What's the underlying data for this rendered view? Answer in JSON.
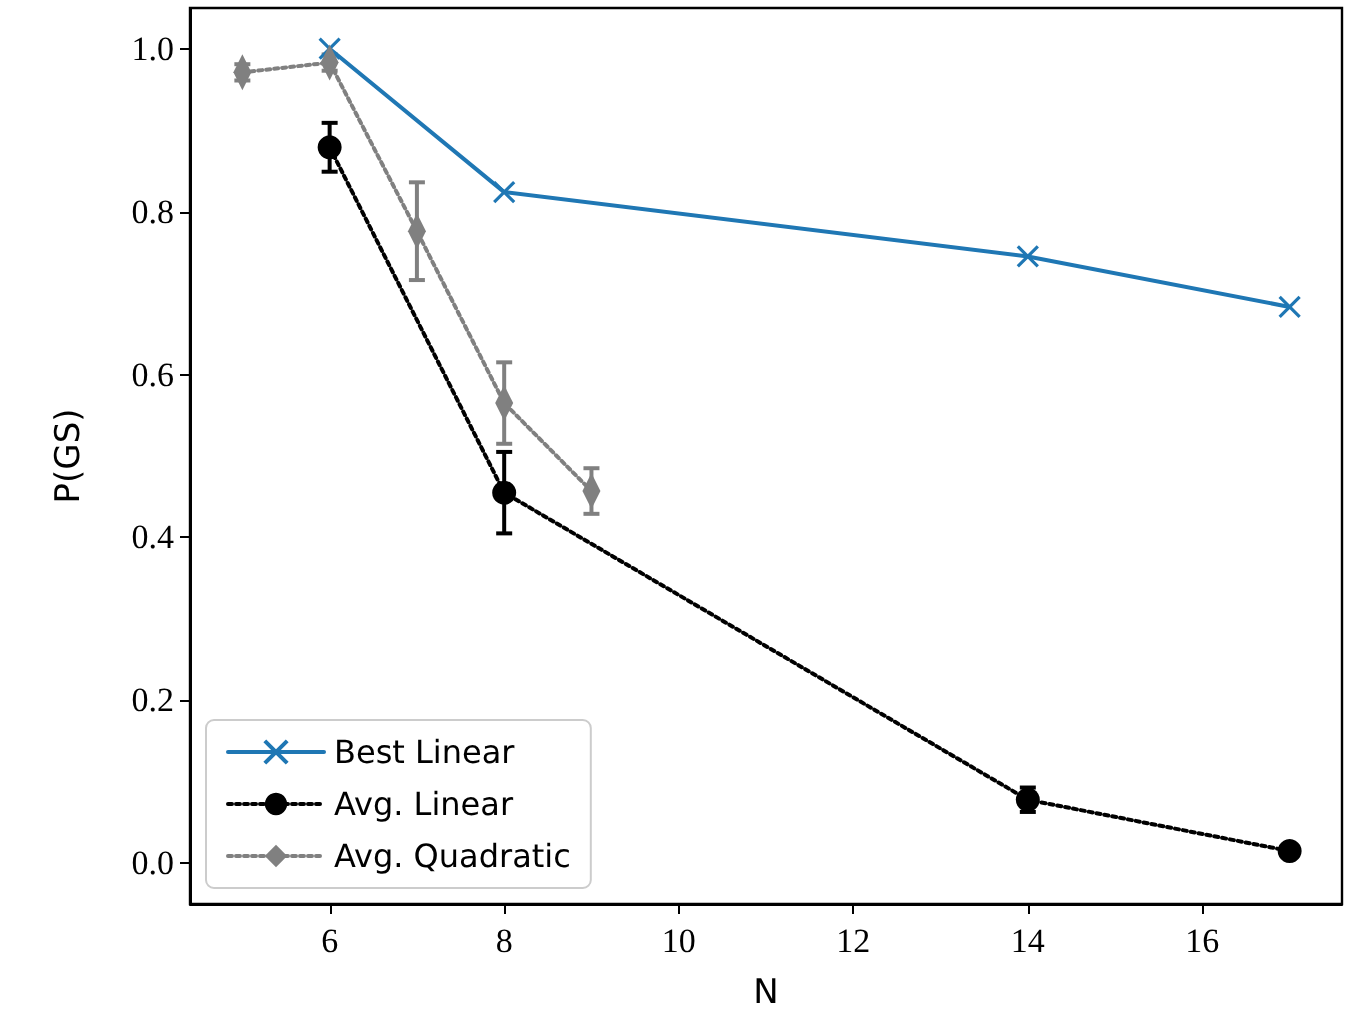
{
  "chart_data": {
    "type": "line",
    "xlabel": "N",
    "ylabel": "P(GS)",
    "xlim": [
      4.4,
      17.6
    ],
    "ylim": [
      -0.05,
      1.05
    ],
    "xticks": [
      6,
      8,
      10,
      12,
      14,
      16
    ],
    "yticks": [
      {
        "value": 0,
        "label": "0.0"
      },
      {
        "value": 0.2,
        "label": "0.2"
      },
      {
        "value": 0.4,
        "label": "0.4"
      },
      {
        "value": 0.6,
        "label": "0.6"
      },
      {
        "value": 0.8,
        "label": "0.8"
      },
      {
        "value": 1,
        "label": "1.0"
      }
    ],
    "legend": "bottom left",
    "series": [
      {
        "name": "Best Linear",
        "color": "#1f77b4",
        "marker": "cross",
        "line_style": "solid",
        "x": [
          6,
          8,
          14,
          17
        ],
        "values": [
          1.0,
          0.824,
          0.745,
          0.683
        ]
      },
      {
        "name": "Avg. Linear",
        "color": "#000000",
        "marker": "circle",
        "line_style": "dotted",
        "x": [
          6,
          8,
          14,
          17
        ],
        "values": [
          0.879,
          0.455,
          0.078,
          0.015
        ],
        "errors": [
          0.03,
          0.05,
          0.015,
          null
        ]
      },
      {
        "name": "Avg. Quadratic",
        "color": "#808080",
        "marker": "diamond",
        "line_style": "dotted",
        "x": [
          5,
          6,
          7,
          8,
          9
        ],
        "values": [
          0.971,
          0.983,
          0.776,
          0.565,
          0.457
        ],
        "errors": [
          0.01,
          0.01,
          0.06,
          0.05,
          0.028
        ]
      }
    ]
  }
}
